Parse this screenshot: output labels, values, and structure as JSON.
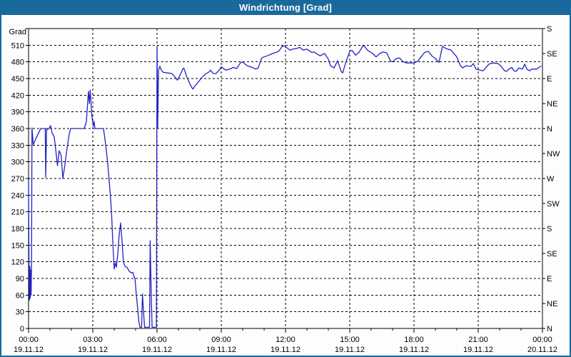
{
  "window": {
    "title": "Windrichtung [Grad]"
  },
  "colors": {
    "titlebar_bg": "#1A699C",
    "titlebar_text": "#FFFFFF",
    "frame_border": "#1A699C",
    "background": "#FCFDFC",
    "plot_bg": "#FDFEFD",
    "grid": "#000000",
    "axis": "#000000",
    "text": "#000000",
    "line": "#2222C4"
  },
  "chart_data": {
    "type": "line",
    "title": "Windrichtung [Grad]",
    "ylabel_left": "Grad",
    "ylim": [
      0,
      540
    ],
    "xlim_hours": [
      0,
      24
    ],
    "grid": "dashed",
    "y_left_tick_step": 30,
    "y_left_ticks": [
      0,
      30,
      60,
      90,
      120,
      150,
      180,
      210,
      240,
      270,
      300,
      330,
      360,
      390,
      420,
      450,
      480,
      510
    ],
    "y_right_labels": [
      {
        "deg": 540,
        "label": "S"
      },
      {
        "deg": 495,
        "label": "SE"
      },
      {
        "deg": 450,
        "label": "E"
      },
      {
        "deg": 405,
        "label": "NE"
      },
      {
        "deg": 360,
        "label": "N"
      },
      {
        "deg": 315,
        "label": "NW"
      },
      {
        "deg": 270,
        "label": "W"
      },
      {
        "deg": 225,
        "label": "SW"
      },
      {
        "deg": 180,
        "label": "S"
      },
      {
        "deg": 135,
        "label": "SE"
      },
      {
        "deg": 90,
        "label": "E"
      },
      {
        "deg": 45,
        "label": "NE"
      },
      {
        "deg": 0,
        "label": "N"
      }
    ],
    "x_major_ticks": [
      {
        "hour": 0,
        "time": "00:00",
        "date": "19.11.12"
      },
      {
        "hour": 3,
        "time": "03:00",
        "date": "19.11.12"
      },
      {
        "hour": 6,
        "time": "06:00",
        "date": "19.11.12"
      },
      {
        "hour": 9,
        "time": "09:00",
        "date": "19.11.12"
      },
      {
        "hour": 12,
        "time": "12:00",
        "date": "19.11.12"
      },
      {
        "hour": 15,
        "time": "15:00",
        "date": "19.11.12"
      },
      {
        "hour": 18,
        "time": "18:00",
        "date": "19.11.12"
      },
      {
        "hour": 21,
        "time": "21:00",
        "date": "19.11.12"
      },
      {
        "hour": 24,
        "time": "00:00",
        "date": "20.11.12"
      }
    ],
    "x_minor_step_hours": 1,
    "series": [
      {
        "name": "Windrichtung",
        "color": "#2222C4",
        "points": [
          [
            0.0,
            265
          ],
          [
            0.02,
            120
          ],
          [
            0.04,
            51
          ],
          [
            0.06,
            112
          ],
          [
            0.08,
            55
          ],
          [
            0.1,
            105
          ],
          [
            0.12,
            60
          ],
          [
            0.14,
            118
          ],
          [
            0.16,
            361
          ],
          [
            0.22,
            331
          ],
          [
            0.33,
            341
          ],
          [
            0.47,
            352
          ],
          [
            0.57,
            360
          ],
          [
            0.72,
            360
          ],
          [
            0.78,
            360
          ],
          [
            0.8,
            272
          ],
          [
            0.84,
            357
          ],
          [
            0.95,
            360
          ],
          [
            1.03,
            365
          ],
          [
            1.1,
            352
          ],
          [
            1.2,
            345
          ],
          [
            1.28,
            318
          ],
          [
            1.35,
            293
          ],
          [
            1.43,
            320
          ],
          [
            1.52,
            312
          ],
          [
            1.6,
            270
          ],
          [
            1.7,
            295
          ],
          [
            1.8,
            325
          ],
          [
            1.9,
            350
          ],
          [
            1.97,
            360
          ],
          [
            2.3,
            360
          ],
          [
            2.6,
            360
          ],
          [
            2.7,
            372
          ],
          [
            2.77,
            412
          ],
          [
            2.8,
            427
          ],
          [
            2.84,
            405
          ],
          [
            2.88,
            429
          ],
          [
            2.95,
            385
          ],
          [
            3.02,
            364
          ],
          [
            3.06,
            373
          ],
          [
            3.1,
            360
          ],
          [
            3.5,
            360
          ],
          [
            3.57,
            340
          ],
          [
            3.63,
            322
          ],
          [
            3.7,
            296
          ],
          [
            3.77,
            264
          ],
          [
            3.83,
            235
          ],
          [
            3.88,
            205
          ],
          [
            3.93,
            160
          ],
          [
            3.97,
            129
          ],
          [
            4.0,
            107
          ],
          [
            4.05,
            118
          ],
          [
            4.1,
            110
          ],
          [
            4.17,
            135
          ],
          [
            4.23,
            167
          ],
          [
            4.3,
            190
          ],
          [
            4.37,
            155
          ],
          [
            4.43,
            120
          ],
          [
            4.5,
            112
          ],
          [
            4.6,
            110
          ],
          [
            4.7,
            103
          ],
          [
            4.8,
            100
          ],
          [
            4.87,
            101
          ],
          [
            4.92,
            94
          ],
          [
            4.97,
            90
          ],
          [
            5.03,
            62
          ],
          [
            5.1,
            34
          ],
          [
            5.15,
            13
          ],
          [
            5.2,
            2
          ],
          [
            5.28,
            2
          ],
          [
            5.32,
            62
          ],
          [
            5.37,
            30
          ],
          [
            5.42,
            2
          ],
          [
            5.58,
            2
          ],
          [
            5.65,
            2
          ],
          [
            5.68,
            158
          ],
          [
            5.73,
            60
          ],
          [
            5.77,
            2
          ],
          [
            5.97,
            2
          ],
          [
            6.0,
            508
          ],
          [
            6.03,
            360
          ],
          [
            6.07,
            465
          ],
          [
            6.13,
            472
          ],
          [
            6.2,
            465
          ],
          [
            6.3,
            461
          ],
          [
            6.5,
            460
          ],
          [
            6.7,
            459
          ],
          [
            6.9,
            450
          ],
          [
            6.95,
            447
          ],
          [
            7.05,
            454
          ],
          [
            7.2,
            467
          ],
          [
            7.25,
            469
          ],
          [
            7.4,
            452
          ],
          [
            7.55,
            439
          ],
          [
            7.67,
            431
          ],
          [
            7.8,
            438
          ],
          [
            7.95,
            445
          ],
          [
            8.1,
            452
          ],
          [
            8.25,
            458
          ],
          [
            8.4,
            461
          ],
          [
            8.5,
            465
          ],
          [
            8.62,
            459
          ],
          [
            8.75,
            459
          ],
          [
            8.9,
            465
          ],
          [
            9.0,
            471
          ],
          [
            9.22,
            465
          ],
          [
            9.39,
            467
          ],
          [
            9.56,
            470
          ],
          [
            9.72,
            468
          ],
          [
            9.89,
            478
          ],
          [
            10.0,
            480
          ],
          [
            10.11,
            476
          ],
          [
            10.22,
            473
          ],
          [
            10.44,
            470
          ],
          [
            10.61,
            467
          ],
          [
            10.72,
            469
          ],
          [
            10.89,
            487
          ],
          [
            11.0,
            489
          ],
          [
            11.22,
            492
          ],
          [
            11.39,
            495
          ],
          [
            11.56,
            497
          ],
          [
            11.67,
            499
          ],
          [
            11.78,
            504
          ],
          [
            11.85,
            508
          ],
          [
            11.94,
            509
          ],
          [
            12.0,
            507
          ],
          [
            12.11,
            504
          ],
          [
            12.22,
            501
          ],
          [
            12.33,
            503
          ],
          [
            12.5,
            504
          ],
          [
            12.67,
            506
          ],
          [
            12.83,
            501
          ],
          [
            13.0,
            503
          ],
          [
            13.22,
            497
          ],
          [
            13.33,
            498
          ],
          [
            13.44,
            495
          ],
          [
            13.61,
            491
          ],
          [
            13.83,
            495
          ],
          [
            14.0,
            485
          ],
          [
            14.1,
            473
          ],
          [
            14.27,
            469
          ],
          [
            14.43,
            482
          ],
          [
            14.6,
            463
          ],
          [
            14.67,
            460
          ],
          [
            14.8,
            477
          ],
          [
            15.0,
            499
          ],
          [
            15.1,
            501
          ],
          [
            15.27,
            492
          ],
          [
            15.43,
            497
          ],
          [
            15.6,
            508
          ],
          [
            15.67,
            509
          ],
          [
            15.83,
            501
          ],
          [
            16.07,
            495
          ],
          [
            16.23,
            489
          ],
          [
            16.4,
            495
          ],
          [
            16.57,
            498
          ],
          [
            16.73,
            496
          ],
          [
            16.9,
            482
          ],
          [
            17.0,
            480
          ],
          [
            17.17,
            486
          ],
          [
            17.33,
            487
          ],
          [
            17.5,
            480
          ],
          [
            17.67,
            478
          ],
          [
            18.0,
            478
          ],
          [
            18.17,
            481
          ],
          [
            18.33,
            489
          ],
          [
            18.5,
            497
          ],
          [
            18.67,
            499
          ],
          [
            18.83,
            491
          ],
          [
            19.0,
            486
          ],
          [
            19.17,
            479
          ],
          [
            19.33,
            508
          ],
          [
            19.5,
            504
          ],
          [
            19.73,
            501
          ],
          [
            20.0,
            489
          ],
          [
            20.17,
            473
          ],
          [
            20.27,
            469
          ],
          [
            20.43,
            473
          ],
          [
            20.67,
            472
          ],
          [
            20.77,
            477
          ],
          [
            20.9,
            467
          ],
          [
            21.0,
            466
          ],
          [
            21.23,
            464
          ],
          [
            21.5,
            476
          ],
          [
            21.67,
            478
          ],
          [
            21.93,
            477
          ],
          [
            22.07,
            472
          ],
          [
            22.23,
            464
          ],
          [
            22.33,
            463
          ],
          [
            22.43,
            467
          ],
          [
            22.57,
            470
          ],
          [
            22.67,
            464
          ],
          [
            22.77,
            463
          ],
          [
            22.9,
            469
          ],
          [
            23.07,
            467
          ],
          [
            23.17,
            476
          ],
          [
            23.27,
            467
          ],
          [
            23.4,
            464
          ],
          [
            23.5,
            467
          ],
          [
            23.73,
            467
          ],
          [
            23.83,
            470
          ],
          [
            23.93,
            472
          ]
        ]
      }
    ]
  }
}
